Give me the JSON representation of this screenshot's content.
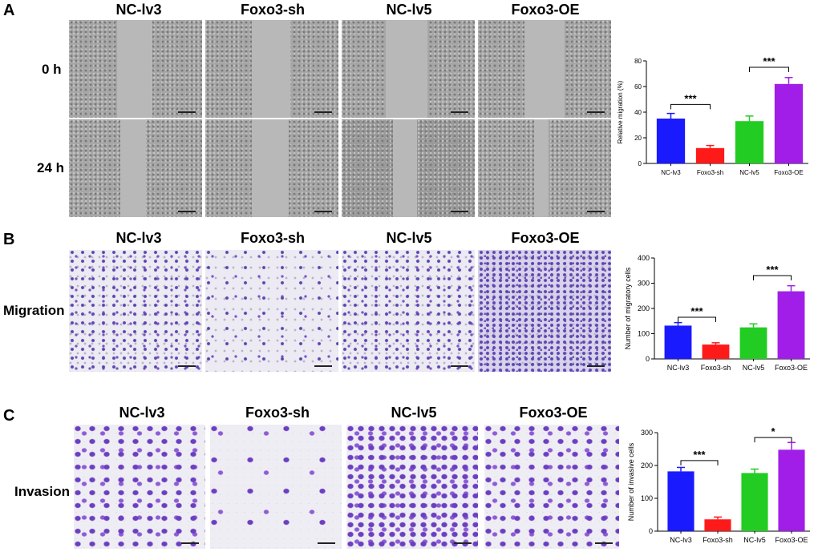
{
  "panels": {
    "a": {
      "letter": "A",
      "columns": [
        "NC-lv3",
        "Foxo3-sh",
        "NC-lv5",
        "Foxo3-OE"
      ],
      "rows": [
        "0 h",
        "24 h"
      ]
    },
    "b": {
      "letter": "B",
      "columns": [
        "NC-lv3",
        "Foxo3-sh",
        "NC-lv5",
        "Foxo3-OE"
      ],
      "row": "Migration"
    },
    "c": {
      "letter": "C",
      "columns": [
        "NC-lv3",
        "Foxo3-sh",
        "NC-lv5",
        "Foxo3-OE"
      ],
      "row": "Invasion"
    }
  },
  "colors": {
    "series": [
      "#1a1aff",
      "#ff1a1a",
      "#22cc22",
      "#a01ee8"
    ],
    "axis": "#000000"
  },
  "chart_data": [
    {
      "type": "bar",
      "categories": [
        "NC-lv3",
        "Foxo3-sh",
        "NC-lv5",
        "Foxo3-OE"
      ],
      "values": [
        35,
        12,
        33,
        62
      ],
      "errors": [
        4,
        2,
        4,
        5
      ],
      "ylabel": "Relative migration (%)",
      "ylim": [
        0,
        80
      ],
      "yticks": [
        0,
        20,
        40,
        60,
        80
      ],
      "significance": [
        {
          "from": 0,
          "to": 1,
          "label": "***",
          "y": 46
        },
        {
          "from": 2,
          "to": 3,
          "label": "***",
          "y": 75
        }
      ]
    },
    {
      "type": "bar",
      "categories": [
        "NC-lv3",
        "Foxo3-sh",
        "NC-lv5",
        "Foxo3-OE"
      ],
      "values": [
        132,
        57,
        125,
        268
      ],
      "errors": [
        12,
        7,
        14,
        22
      ],
      "ylabel": "Number of migratory cells",
      "ylim": [
        0,
        400
      ],
      "yticks": [
        0,
        100,
        200,
        300,
        400
      ],
      "significance": [
        {
          "from": 0,
          "to": 1,
          "label": "***",
          "y": 165
        },
        {
          "from": 2,
          "to": 3,
          "label": "***",
          "y": 330
        }
      ]
    },
    {
      "type": "bar",
      "categories": [
        "NC-lv3",
        "Foxo3-sh",
        "NC-lv5",
        "Foxo3-OE"
      ],
      "values": [
        182,
        36,
        177,
        248
      ],
      "errors": [
        12,
        7,
        12,
        22
      ],
      "ylabel": "Number of invasive cells",
      "ylim": [
        0,
        300
      ],
      "yticks": [
        0,
        100,
        200,
        300
      ],
      "significance": [
        {
          "from": 0,
          "to": 1,
          "label": "***",
          "y": 215
        },
        {
          "from": 2,
          "to": 3,
          "label": "*",
          "y": 285
        }
      ]
    }
  ]
}
